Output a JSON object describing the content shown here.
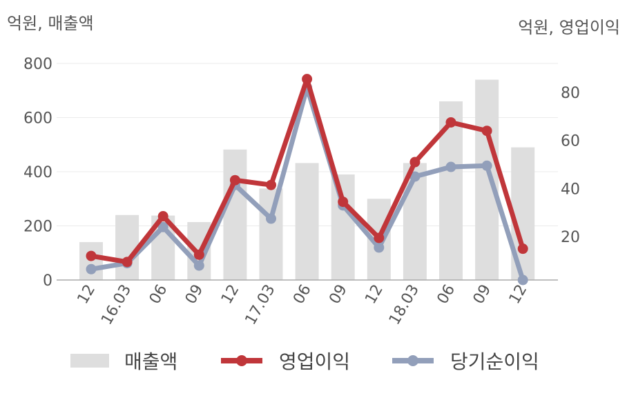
{
  "chart_data": {
    "type": "bar+line",
    "categories": [
      "12",
      "16.03",
      "06",
      "09",
      "12",
      "17.03",
      "06",
      "09",
      "12",
      "18.03",
      "06",
      "09",
      "12"
    ],
    "left_axis": {
      "unit": "억원, 매출액",
      "ylim": [
        0,
        800
      ],
      "ticks": [
        "0",
        "200",
        "400",
        "600",
        "800"
      ]
    },
    "right_axis": {
      "unit": "억원, 영업이익",
      "ylim": [
        2,
        92
      ],
      "ticks": [
        "20",
        "40",
        "60",
        "80"
      ]
    },
    "series": [
      {
        "name": "매출액",
        "type": "bar",
        "axis": "left",
        "color": "#dedede",
        "values": [
          140,
          240,
          238,
          214,
          482,
          338,
          432,
          390,
          300,
          432,
          660,
          740,
          490
        ]
      },
      {
        "name": "영업이익",
        "type": "line",
        "axis": "right",
        "color": "#c0363a",
        "values": [
          12,
          9.5,
          28.5,
          12.5,
          43.5,
          41.5,
          85.5,
          34.5,
          19.5,
          51,
          67.5,
          64,
          15
        ]
      },
      {
        "name": "당기순이익",
        "type": "line",
        "axis": "right",
        "color": "#929fba",
        "values": [
          6.5,
          9,
          24,
          8,
          41.5,
          27.5,
          82,
          33,
          15.5,
          45,
          49,
          49.5,
          2
        ]
      }
    ],
    "grid": true,
    "legend_position": "bottom"
  }
}
